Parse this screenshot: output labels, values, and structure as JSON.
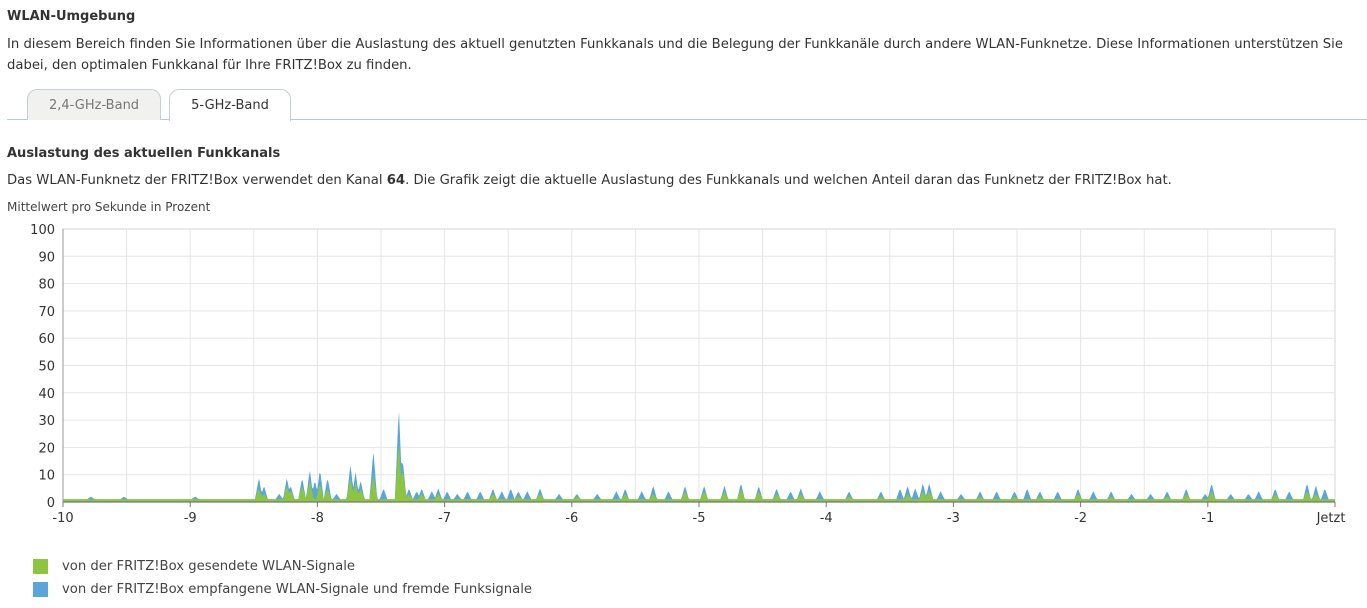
{
  "section": {
    "title": "WLAN-Umgebung",
    "description_line1": "In diesem Bereich finden Sie Informationen über die Auslastung des aktuell genutzten Funkkanals und die Belegung der Funkkanäle durch andere WLAN-Funknetze. Diese Informationen unterstützen Sie",
    "description_line2": "dabei, den optimalen Funkkanal für Ihre FRITZ!Box zu finden."
  },
  "tabs": [
    {
      "label": "2,4-GHz-Band",
      "active": false
    },
    {
      "label": "5-GHz-Band",
      "active": true
    }
  ],
  "channel": {
    "title": "Auslastung des aktuellen Funkkanals",
    "text_before": "Das WLAN-Funknetz der FRITZ!Box verwendet den Kanal ",
    "channel_number": "64",
    "text_after": ". Die Grafik zeigt die aktuelle Auslastung des Funkkanals und welchen Anteil daran das Funknetz der FRITZ!Box hat.",
    "chart_caption": "Mittelwert pro Sekunde in Prozent"
  },
  "colors": {
    "sent": "#8cc63f",
    "received": "#5aa6dc",
    "grid": "#e6e6e6",
    "axis": "#999999"
  },
  "chart_data": {
    "type": "area",
    "ylim": [
      0,
      100
    ],
    "xlim": [
      -10,
      0
    ],
    "y_ticks": [
      "0",
      "10",
      "20",
      "30",
      "40",
      "50",
      "60",
      "70",
      "80",
      "90",
      "100"
    ],
    "x_ticks": [
      "-10",
      "-9",
      "-8",
      "-7",
      "-6",
      "-5",
      "-4",
      "-3",
      "-2",
      "-1",
      "Jetzt"
    ],
    "grid": true,
    "legend_position": "bottom-left",
    "baseline": 1,
    "series": [
      {
        "name": "von der FRITZ!Box gesendete WLAN-Signale",
        "color": "#8cc63f",
        "spikes": [
          [
            -8.46,
            5
          ],
          [
            -8.42,
            3
          ],
          [
            -8.24,
            6
          ],
          [
            -8.21,
            4
          ],
          [
            -8.12,
            6
          ],
          [
            -8.06,
            8
          ],
          [
            -7.98,
            7
          ],
          [
            -7.92,
            5
          ],
          [
            -7.74,
            9
          ],
          [
            -7.7,
            7
          ],
          [
            -7.66,
            5
          ],
          [
            -7.56,
            10
          ],
          [
            -7.36,
            22
          ],
          [
            -7.33,
            12
          ],
          [
            -7.28,
            3
          ],
          [
            -7.18,
            3
          ],
          [
            -7.05,
            3
          ],
          [
            -6.62,
            3
          ],
          [
            -6.42,
            2
          ],
          [
            -6.25,
            3
          ],
          [
            -5.96,
            2
          ],
          [
            -5.58,
            3
          ],
          [
            -5.36,
            3
          ],
          [
            -5.11,
            4
          ],
          [
            -4.96,
            4
          ],
          [
            -4.8,
            4
          ],
          [
            -4.67,
            5
          ],
          [
            -4.53,
            4
          ],
          [
            -4.39,
            3
          ],
          [
            -4.2,
            3
          ],
          [
            -3.82,
            2
          ],
          [
            -3.57,
            2
          ],
          [
            -3.36,
            3
          ],
          [
            -3.24,
            4
          ],
          [
            -3.19,
            4
          ],
          [
            -2.79,
            2
          ],
          [
            -2.52,
            2
          ],
          [
            -2.32,
            2
          ],
          [
            -2.02,
            3
          ],
          [
            -1.76,
            2
          ],
          [
            -1.32,
            2
          ],
          [
            -1.17,
            3
          ],
          [
            -0.97,
            4
          ],
          [
            -0.47,
            3
          ],
          [
            -0.22,
            4
          ],
          [
            -0.15,
            3
          ]
        ]
      },
      {
        "name": "von der FRITZ!Box empfangene WLAN-Signale und fremde Funksignale",
        "color": "#5aa6dc",
        "spikes": [
          [
            -9.78,
            2
          ],
          [
            -9.52,
            2
          ],
          [
            -8.96,
            2
          ],
          [
            -8.46,
            9
          ],
          [
            -8.42,
            6
          ],
          [
            -8.3,
            3
          ],
          [
            -8.24,
            9
          ],
          [
            -8.21,
            6
          ],
          [
            -8.12,
            9
          ],
          [
            -8.06,
            12
          ],
          [
            -8.02,
            8
          ],
          [
            -7.98,
            12
          ],
          [
            -7.92,
            9
          ],
          [
            -7.85,
            3
          ],
          [
            -7.74,
            14
          ],
          [
            -7.7,
            11
          ],
          [
            -7.66,
            8
          ],
          [
            -7.56,
            19
          ],
          [
            -7.48,
            5
          ],
          [
            -7.36,
            35
          ],
          [
            -7.33,
            16
          ],
          [
            -7.28,
            5
          ],
          [
            -7.22,
            4
          ],
          [
            -7.18,
            5
          ],
          [
            -7.1,
            4
          ],
          [
            -7.05,
            5
          ],
          [
            -6.98,
            4
          ],
          [
            -6.9,
            3
          ],
          [
            -6.82,
            4
          ],
          [
            -6.72,
            4
          ],
          [
            -6.62,
            5
          ],
          [
            -6.55,
            4
          ],
          [
            -6.48,
            5
          ],
          [
            -6.42,
            4
          ],
          [
            -6.35,
            4
          ],
          [
            -6.25,
            5
          ],
          [
            -6.1,
            3
          ],
          [
            -5.96,
            3
          ],
          [
            -5.8,
            3
          ],
          [
            -5.65,
            4
          ],
          [
            -5.58,
            5
          ],
          [
            -5.45,
            4
          ],
          [
            -5.36,
            6
          ],
          [
            -5.24,
            4
          ],
          [
            -5.11,
            6
          ],
          [
            -4.96,
            6
          ],
          [
            -4.8,
            6
          ],
          [
            -4.67,
            7
          ],
          [
            -4.53,
            6
          ],
          [
            -4.39,
            5
          ],
          [
            -4.28,
            4
          ],
          [
            -4.2,
            5
          ],
          [
            -4.05,
            4
          ],
          [
            -3.82,
            4
          ],
          [
            -3.57,
            4
          ],
          [
            -3.42,
            5
          ],
          [
            -3.36,
            6
          ],
          [
            -3.3,
            5
          ],
          [
            -3.24,
            7
          ],
          [
            -3.19,
            7
          ],
          [
            -3.1,
            4
          ],
          [
            -2.94,
            3
          ],
          [
            -2.79,
            4
          ],
          [
            -2.66,
            4
          ],
          [
            -2.52,
            4
          ],
          [
            -2.42,
            5
          ],
          [
            -2.32,
            4
          ],
          [
            -2.18,
            4
          ],
          [
            -2.02,
            5
          ],
          [
            -1.9,
            4
          ],
          [
            -1.76,
            4
          ],
          [
            -1.6,
            3
          ],
          [
            -1.45,
            3
          ],
          [
            -1.32,
            4
          ],
          [
            -1.17,
            5
          ],
          [
            -1.02,
            3
          ],
          [
            -0.97,
            7
          ],
          [
            -0.82,
            3
          ],
          [
            -0.68,
            3
          ],
          [
            -0.6,
            4
          ],
          [
            -0.47,
            5
          ],
          [
            -0.36,
            4
          ],
          [
            -0.22,
            7
          ],
          [
            -0.15,
            6
          ],
          [
            -0.08,
            5
          ]
        ]
      }
    ]
  },
  "legend": [
    {
      "label": "von der FRITZ!Box gesendete WLAN-Signale",
      "color": "#8cc63f"
    },
    {
      "label": "von der FRITZ!Box empfangene WLAN-Signale und fremde Funksignale",
      "color": "#5aa6dc"
    }
  ]
}
